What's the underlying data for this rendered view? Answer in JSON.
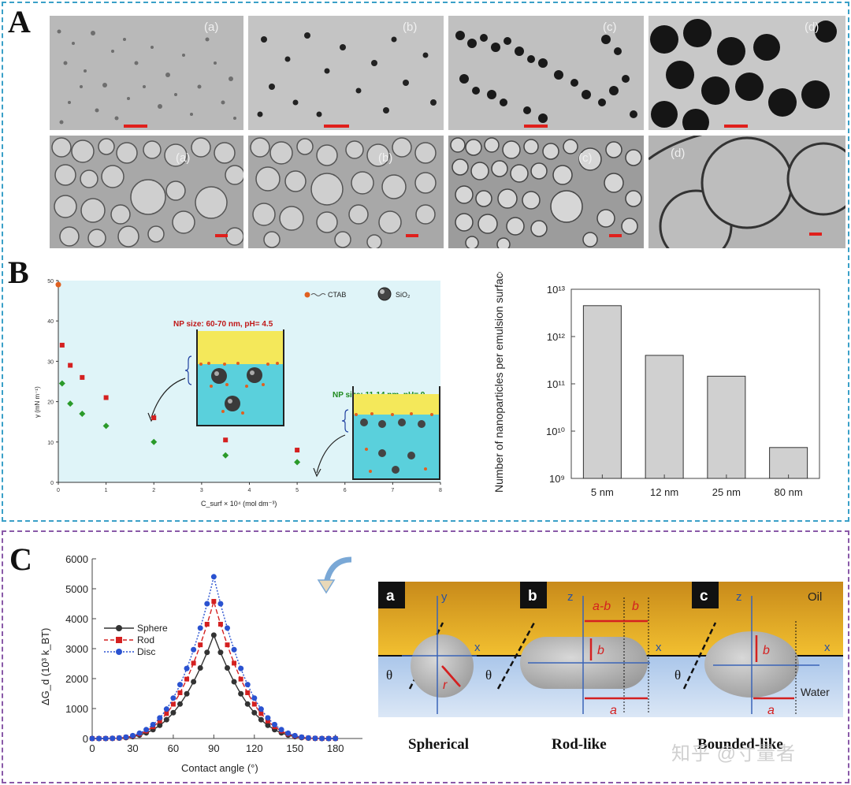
{
  "panels": {
    "A": "A",
    "B": "B",
    "C": "C"
  },
  "panelA": {
    "top_labels": [
      "(a)",
      "(b)",
      "(c)",
      "(d)"
    ],
    "bottom_labels": [
      "(a)",
      "(b)",
      "(c)",
      "(d)"
    ]
  },
  "panelB_left": {
    "ylabel": "γ (mN m⁻¹)",
    "xlabel": "C_surf × 10⁴ (mol dm⁻³)",
    "legend_ctab": "CTAB",
    "legend_sio2": "SiO₂",
    "annotation_red": "NP size: 60-70 nm, pH= 4.5",
    "annotation_green": "NP size: 11-14 nm, pH= 9",
    "red_color": "#d42020",
    "green_color": "#2a9a2a",
    "x_ticks": [
      "0",
      "1",
      "2",
      "3",
      "4",
      "5",
      "6",
      "7",
      "8"
    ],
    "y_ticks": [
      "0",
      "10",
      "20",
      "30",
      "40",
      "50"
    ]
  },
  "chart_data": [
    {
      "type": "scatter",
      "title": "",
      "xlabel": "C_surf × 10⁴ (mol dm⁻³)",
      "ylabel": "γ (mN m⁻¹)",
      "xlim": [
        0,
        8
      ],
      "ylim": [
        0,
        50
      ],
      "series": [
        {
          "name": "",
          "color": "#d42020",
          "x": [
            0,
            0.08,
            0.25,
            0.5,
            1,
            2,
            3.5,
            5
          ],
          "y": [
            49,
            34,
            29,
            26,
            21,
            16,
            10.5,
            8
          ]
        },
        {
          "name": "",
          "color": "#2a9a2a",
          "x": [
            0.08,
            0.25,
            0.5,
            1,
            2,
            3.5,
            5
          ],
          "y": [
            24.5,
            19.5,
            17,
            14,
            10,
            6.7,
            5
          ]
        }
      ]
    },
    {
      "type": "bar",
      "title": "",
      "xlabel": "",
      "ylabel": "Number of nanoparticles per emulsion surface area (cm⁻²)",
      "y_scale": "log",
      "ylim": [
        1000000000.0,
        10000000000000.0
      ],
      "categories": [
        "5 nm",
        "12 nm",
        "25 nm",
        "80 nm"
      ],
      "values": [
        4500000000000.0,
        400000000000.0,
        145000000000.0,
        4500000000.0
      ],
      "bar_color": "#d0d0d0",
      "y_tick_labels": [
        "10⁹",
        "10¹⁰",
        "10¹¹",
        "10¹²",
        "10¹³"
      ]
    },
    {
      "type": "line",
      "title": "",
      "xlabel": "Contact angle (°)",
      "ylabel": "ΔG_d (10³ k_BT)",
      "xlim": [
        0,
        200
      ],
      "ylim": [
        0,
        6000
      ],
      "x_ticks": [
        "0",
        "30",
        "60",
        "90",
        "120",
        "150",
        "180"
      ],
      "y_ticks": [
        "0",
        "1000",
        "2000",
        "3000",
        "4000",
        "5000",
        "6000"
      ],
      "legend_position": "left",
      "series": [
        {
          "name": "Sphere",
          "color": "#333333",
          "peak": 3450
        },
        {
          "name": "Rod",
          "color": "#d42020",
          "peak": 4580
        },
        {
          "name": "Disc",
          "color": "#2a52d0",
          "peak": 5400
        }
      ]
    }
  ],
  "panelC_right": {
    "tag_a": "a",
    "tag_b": "b",
    "tag_c": "c",
    "oil": "Oil",
    "water": "Water",
    "axis_y": "y",
    "axis_z": "z",
    "axis_x": "x",
    "theta": "θ",
    "r": "r",
    "ab": "a-b",
    "b": "b",
    "a": "a",
    "cap_spherical": "Spherical",
    "cap_rod": "Rod-like",
    "cap_bounded": "Bounded-like"
  },
  "watermark": "知乎 @寸量者"
}
